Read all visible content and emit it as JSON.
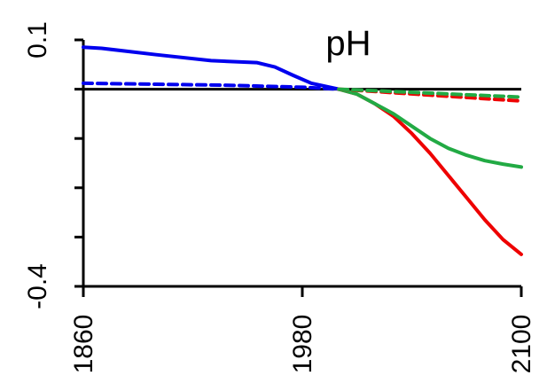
{
  "chart_data": {
    "type": "line",
    "title": "pH",
    "xlabel": "",
    "ylabel": "",
    "xlim": [
      1860,
      2100
    ],
    "ylim": [
      -0.4,
      0.1
    ],
    "x_ticks": [
      1860,
      1980,
      2100
    ],
    "x_tick_labels": [
      "1860",
      "1980",
      "2100"
    ],
    "y_ticks": [
      0.1,
      0.0,
      -0.1,
      -0.2,
      -0.3,
      -0.4
    ],
    "y_tick_labels": [
      "0.1",
      "",
      "",
      "",
      "",
      "-0.4"
    ],
    "grid": false,
    "reference_line": {
      "y": 0.0,
      "color": "#000000"
    },
    "series": [
      {
        "color": "#0000ee",
        "dash": "solid",
        "x": [
          1860,
          1870,
          1900,
          1930,
          1955,
          1965,
          1975,
          1985,
          2000
        ],
        "y": [
          0.085,
          0.083,
          0.07,
          0.058,
          0.054,
          0.045,
          0.028,
          0.012,
          0.0
        ]
      },
      {
        "color": "#0000ee",
        "dash": "dashed",
        "x": [
          1860,
          1900,
          1940,
          1980,
          2000
        ],
        "y": [
          0.012,
          0.01,
          0.008,
          0.004,
          0.0
        ]
      },
      {
        "color": "#ee0000",
        "dash": "solid",
        "x": [
          2000,
          2010,
          2020,
          2030,
          2040,
          2050,
          2060,
          2070,
          2080,
          2090,
          2100
        ],
        "y": [
          0.0,
          -0.01,
          -0.03,
          -0.055,
          -0.09,
          -0.13,
          -0.175,
          -0.22,
          -0.265,
          -0.305,
          -0.335
        ]
      },
      {
        "color": "#22aa44",
        "dash": "solid",
        "x": [
          2000,
          2010,
          2020,
          2030,
          2040,
          2050,
          2060,
          2070,
          2080,
          2090,
          2100
        ],
        "y": [
          0.0,
          -0.01,
          -0.03,
          -0.05,
          -0.075,
          -0.1,
          -0.12,
          -0.134,
          -0.145,
          -0.152,
          -0.158
        ]
      },
      {
        "color": "#ee0000",
        "dash": "dashed",
        "x": [
          2000,
          2025,
          2050,
          2075,
          2100
        ],
        "y": [
          0.0,
          -0.006,
          -0.012,
          -0.018,
          -0.024
        ]
      },
      {
        "color": "#22aa44",
        "dash": "dashed",
        "x": [
          2000,
          2025,
          2050,
          2075,
          2100
        ],
        "y": [
          0.0,
          -0.004,
          -0.008,
          -0.012,
          -0.016
        ]
      }
    ]
  }
}
